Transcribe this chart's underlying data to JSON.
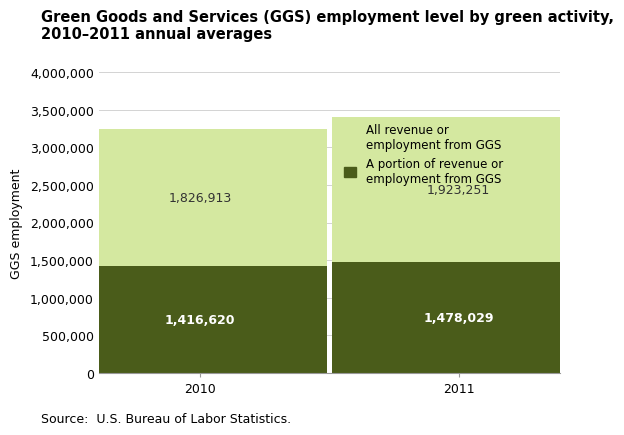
{
  "title": "Green Goods and Services (GGS) employment level by green activity,\n2010–2011 annual averages",
  "ylabel": "GGS employment",
  "source": "Source:  U.S. Bureau of Labor Statistics.",
  "years": [
    "2010",
    "2011"
  ],
  "portion_values": [
    1416620,
    1478029
  ],
  "all_values": [
    1826913,
    1923251
  ],
  "portion_color": "#4a5c1a",
  "all_color": "#d4e8a0",
  "portion_label": "A portion of revenue or\nemployment from GGS",
  "all_label": "All revenue or\nemployment from GGS",
  "ylim": [
    0,
    4000000
  ],
  "yticks": [
    0,
    500000,
    1000000,
    1500000,
    2000000,
    2500000,
    3000000,
    3500000,
    4000000
  ],
  "bar_width": 0.55,
  "bar_positions": [
    0.22,
    0.78
  ],
  "title_fontsize": 10.5,
  "label_fontsize": 9,
  "tick_fontsize": 9,
  "annotation_fontsize": 9,
  "source_fontsize": 9,
  "legend_fontsize": 8.5
}
